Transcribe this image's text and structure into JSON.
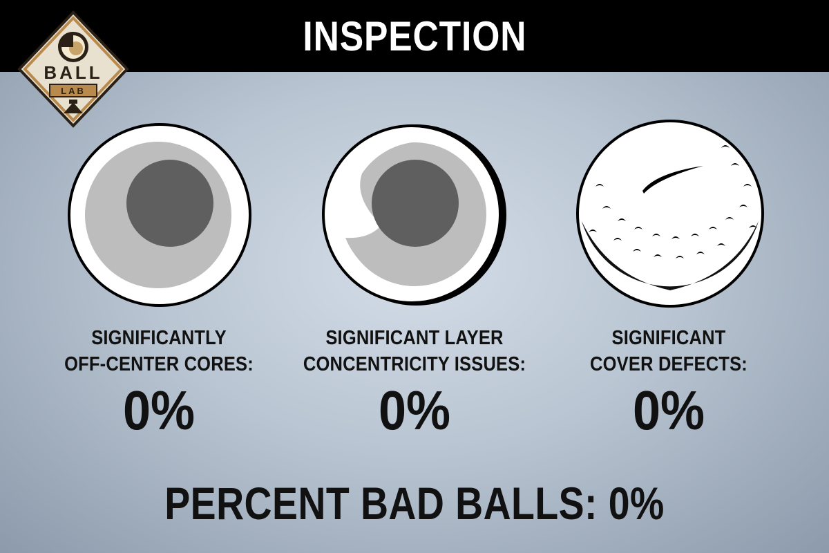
{
  "header": {
    "title": "INSPECTION"
  },
  "logo": {
    "word1": "BALL",
    "word2": "LAB"
  },
  "stats": [
    {
      "label_line1": "SIGNIFICANTLY",
      "label_line2": "OFF-CENTER CORES:",
      "value": "0%"
    },
    {
      "label_line1": "SIGNIFICANT LAYER",
      "label_line2": "CONCENTRICITY ISSUES:",
      "value": "0%"
    },
    {
      "label_line1": "SIGNIFICANT",
      "label_line2": "COVER DEFECTS:",
      "value": "0%"
    }
  ],
  "footer": {
    "label": "PERCENT BAD BALLS:",
    "value": "0%"
  },
  "icons": [
    "ball-lab-logo",
    "off-center-core-cross-section",
    "layer-concentricity-cross-section",
    "golf-ball-cover-defect"
  ]
}
